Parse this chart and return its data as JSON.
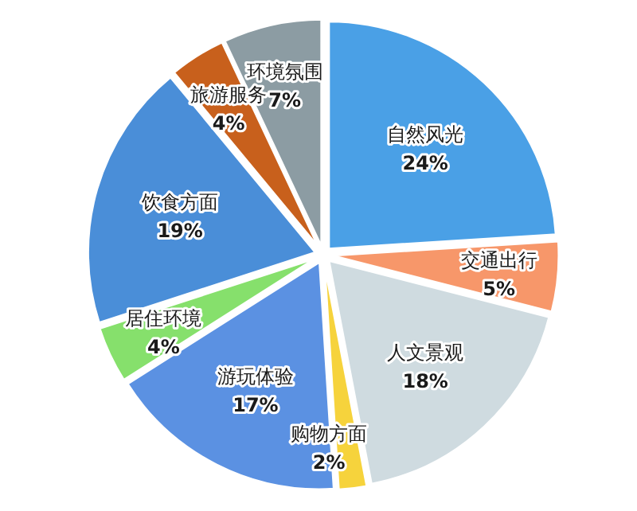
{
  "chart_data": {
    "type": "pie",
    "categories": [
      "自然风光",
      "交通出行",
      "人文景观",
      "购物方面",
      "游玩体验",
      "居住环境",
      "饮食方面",
      "旅游服务",
      "环境氛围"
    ],
    "values": [
      24,
      5,
      18,
      2,
      17,
      4,
      19,
      4,
      7
    ],
    "value_labels": [
      "24%",
      "5%",
      "18%",
      "2%",
      "17%",
      "4%",
      "19%",
      "4%",
      "7%"
    ],
    "colors": [
      "#4aa0e6",
      "#f7976a",
      "#cfdbe0",
      "#f6d33c",
      "#5b91e2",
      "#86e06c",
      "#4a8ed8",
      "#c8601c",
      "#8c9ca3"
    ]
  }
}
